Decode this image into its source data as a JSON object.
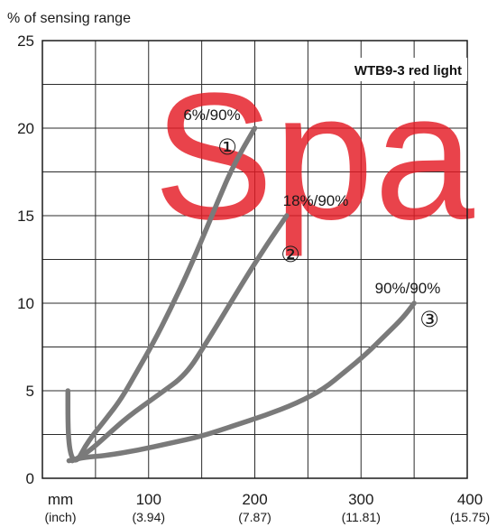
{
  "chart_data": {
    "type": "line",
    "title": "WTB9-3 red light",
    "ylabel": "% of sensing range",
    "xlabel": "mm",
    "xlabel_sub": "(inch)",
    "xlim": [
      0,
      400
    ],
    "ylim": [
      0,
      25
    ],
    "grid": true,
    "x_ticks": [
      {
        "value": 100,
        "label": "100",
        "sub": "(3.94)"
      },
      {
        "value": 200,
        "label": "200",
        "sub": "(7.87)"
      },
      {
        "value": 300,
        "label": "300",
        "sub": "(11.81)"
      },
      {
        "value": 400,
        "label": "400",
        "sub": "(15.75)"
      }
    ],
    "y_ticks": [
      {
        "value": 0,
        "label": "0"
      },
      {
        "value": 5,
        "label": "5"
      },
      {
        "value": 10,
        "label": "10"
      },
      {
        "value": 15,
        "label": "15"
      },
      {
        "value": 20,
        "label": "20"
      },
      {
        "value": 25,
        "label": "25"
      }
    ],
    "series": [
      {
        "label": "6%/90%",
        "marker": "①",
        "points": [
          [
            24,
            5
          ],
          [
            24,
            3.2
          ],
          [
            25,
            2
          ],
          [
            27,
            1.3
          ],
          [
            30,
            1
          ],
          [
            34,
            1.1
          ],
          [
            40,
            1.8
          ],
          [
            48,
            2.5
          ],
          [
            60,
            3.4
          ],
          [
            75,
            4.6
          ],
          [
            90,
            6.2
          ],
          [
            105,
            7.8
          ],
          [
            120,
            9.6
          ],
          [
            135,
            11.5
          ],
          [
            150,
            13.6
          ],
          [
            165,
            15.8
          ],
          [
            180,
            17.9
          ],
          [
            200,
            20
          ]
        ]
      },
      {
        "label": "18%/90%",
        "marker": "②",
        "points": [
          [
            28,
            1
          ],
          [
            35,
            1.2
          ],
          [
            45,
            1.6
          ],
          [
            60,
            2.4
          ],
          [
            80,
            3.5
          ],
          [
            110,
            4.8
          ],
          [
            135,
            5.9
          ],
          [
            155,
            7.8
          ],
          [
            175,
            9.8
          ],
          [
            195,
            11.8
          ],
          [
            212,
            13.4
          ],
          [
            230,
            15
          ]
        ]
      },
      {
        "label": "90%/90%",
        "marker": "③",
        "points": [
          [
            25,
            1
          ],
          [
            40,
            1.2
          ],
          [
            60,
            1.3
          ],
          [
            90,
            1.6
          ],
          [
            120,
            2
          ],
          [
            150,
            2.4
          ],
          [
            180,
            3
          ],
          [
            210,
            3.6
          ],
          [
            240,
            4.3
          ],
          [
            265,
            5.1
          ],
          [
            285,
            6.1
          ],
          [
            305,
            7.1
          ],
          [
            325,
            8.3
          ],
          [
            340,
            9.2
          ],
          [
            350,
            10
          ]
        ]
      }
    ]
  },
  "watermark": "Spa"
}
